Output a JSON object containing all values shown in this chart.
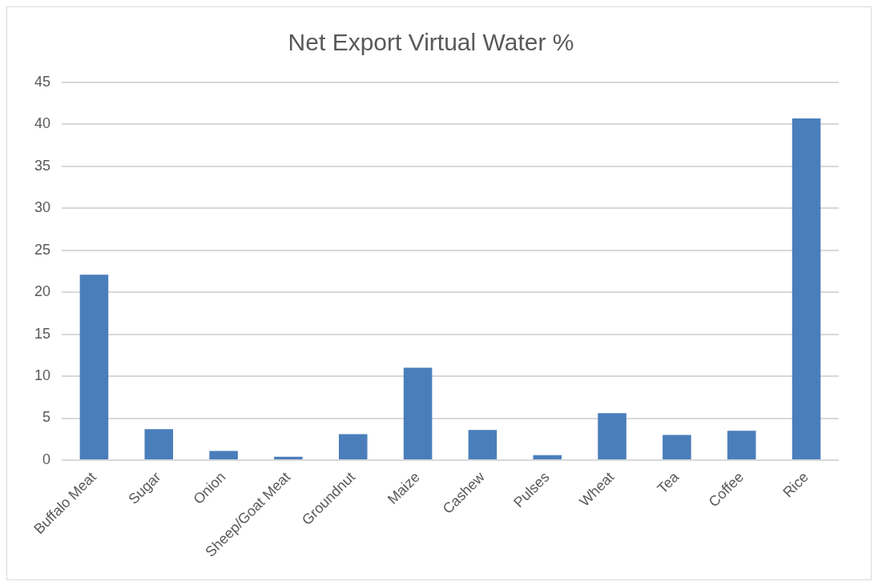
{
  "chart_data": {
    "type": "bar",
    "title": "Net Export Virtual Water %",
    "categories": [
      "Buffalo Meat",
      "Sugar",
      "Onion",
      "Sheep/Goat Meat",
      "Groundnut",
      "Maize",
      "Cashew",
      "Pulses",
      "Wheat",
      "Tea",
      "Coffee",
      "Rice"
    ],
    "values": [
      22.1,
      3.7,
      1.1,
      0.4,
      3.1,
      11.0,
      3.6,
      0.6,
      5.6,
      3.0,
      3.5,
      40.7
    ],
    "color": "#4a7ebb",
    "ylim": [
      0,
      45
    ],
    "yticks": [
      0,
      5,
      10,
      15,
      20,
      25,
      30,
      35,
      40,
      45
    ],
    "grid": "y"
  }
}
